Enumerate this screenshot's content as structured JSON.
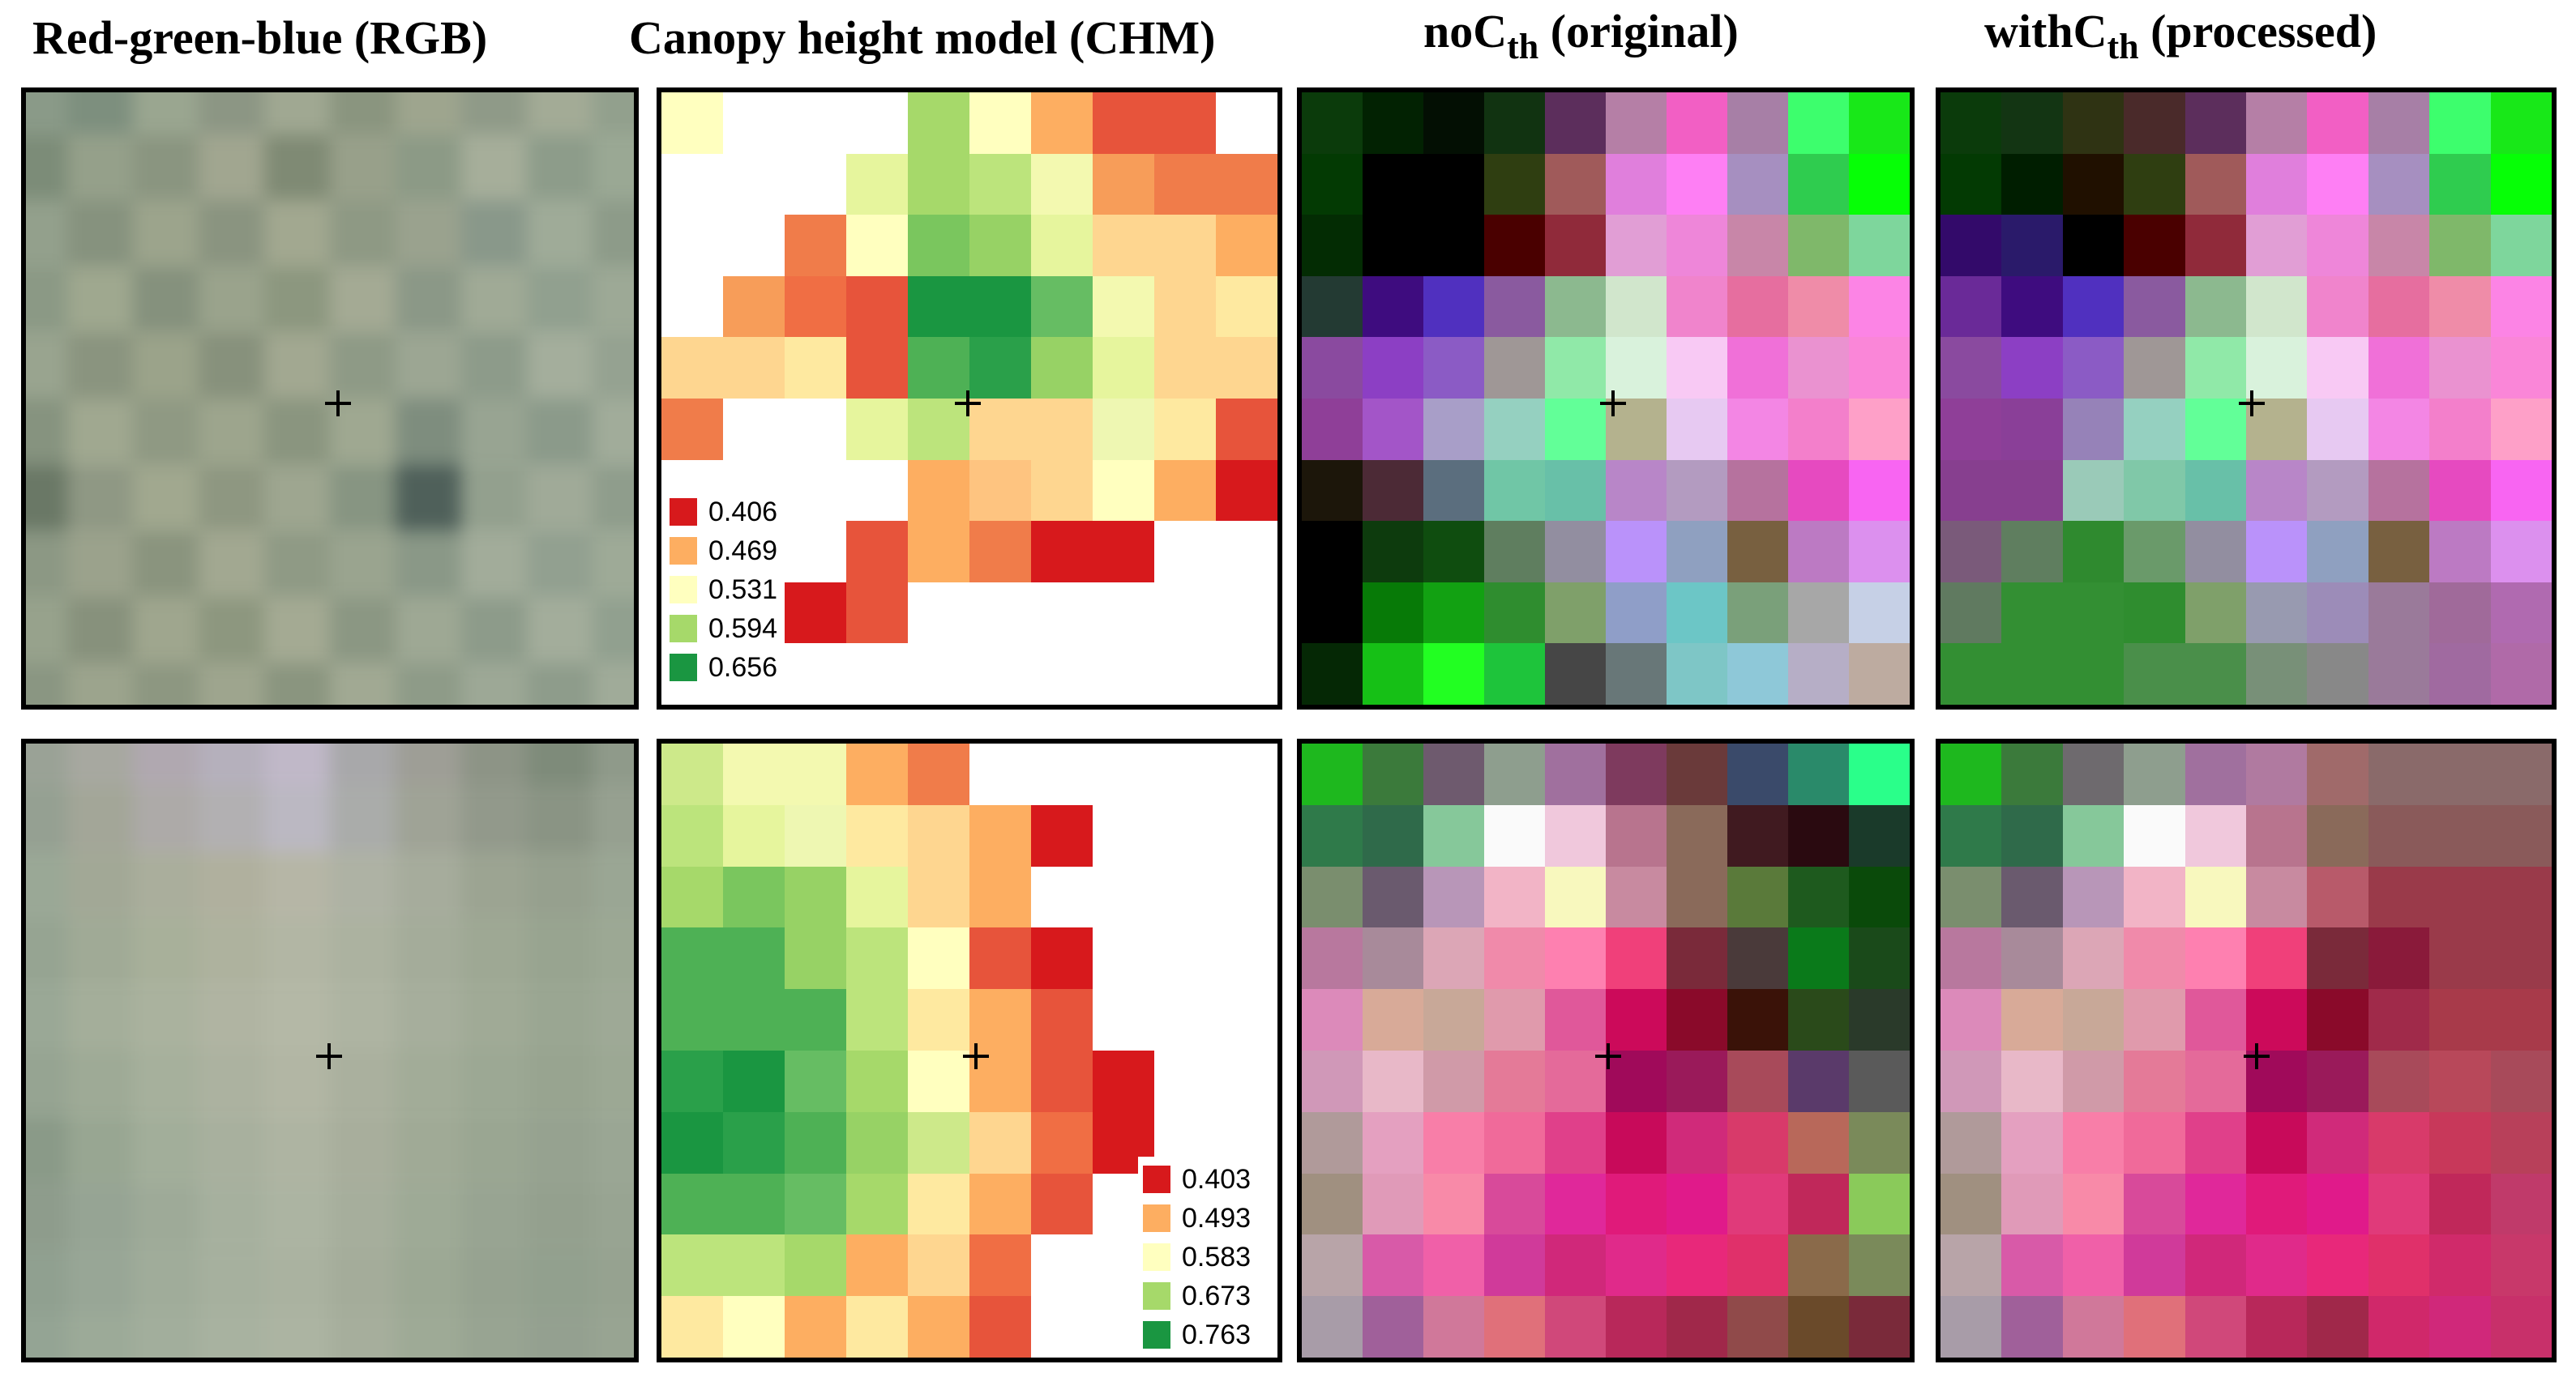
{
  "titles": {
    "rgb": "Red-green-blue (RGB)",
    "chm": "Canopy height model (CHM)",
    "nocth": {
      "main": "noC",
      "sub": "th",
      "tail": " (original)"
    },
    "withcth": {
      "main": "withC",
      "sub": "th",
      "tail": " (processed)"
    }
  },
  "legends": {
    "top": [
      {
        "value": "0.406",
        "color": "#d7191c"
      },
      {
        "value": "0.469",
        "color": "#fdae61"
      },
      {
        "value": "0.531",
        "color": "#ffffbf"
      },
      {
        "value": "0.594",
        "color": "#a6d96a"
      },
      {
        "value": "0.656",
        "color": "#1a9641"
      }
    ],
    "bottom": [
      {
        "value": "0.403",
        "color": "#d7191c"
      },
      {
        "value": "0.493",
        "color": "#fdae61"
      },
      {
        "value": "0.583",
        "color": "#ffffbf"
      },
      {
        "value": "0.673",
        "color": "#a6d96a"
      },
      {
        "value": "0.763",
        "color": "#1a9641"
      }
    ]
  },
  "grids": {
    "rgb_top": [
      [
        "#8a9a88",
        "#7d8f7e",
        "#9aa690",
        "#8c9684",
        "#a0a892",
        "#8a957f",
        "#9ea58e",
        "#8f9a88",
        "#a3ab96",
        "#92a08d"
      ],
      [
        "#7c8c78",
        "#95a08a",
        "#8a9580",
        "#a1a690",
        "#7f8a74",
        "#98a08a",
        "#8c9a86",
        "#a6ae9a",
        "#8d9c8a",
        "#9aa894"
      ],
      [
        "#93a08c",
        "#86927e",
        "#9ca48c",
        "#8a9480",
        "#a2a890",
        "#8e9984",
        "#9aa28e",
        "#89988a",
        "#9fab98",
        "#8d9b89"
      ],
      [
        "#8b9985",
        "#9fa88f",
        "#85917d",
        "#9aa38c",
        "#8c977f",
        "#a4aa94",
        "#8b9887",
        "#a0aa96",
        "#91a08f",
        "#9da996"
      ],
      [
        "#99a48f",
        "#8a947f",
        "#9ba38a",
        "#87917c",
        "#a2a891",
        "#8e9a86",
        "#9ca693",
        "#8d9b8a",
        "#a4ae9c",
        "#95a291"
      ],
      [
        "#86937f",
        "#a0a890",
        "#8f9983",
        "#9da58d",
        "#8a957f",
        "#9fa891",
        "#7e8d7e",
        "#98a492",
        "#8b9a8a",
        "#a1ac9a"
      ],
      [
        "#6a7866",
        "#8f9884",
        "#a1a88f",
        "#8e9781",
        "#9ea690",
        "#879582",
        "#4f605a",
        "#93a08e",
        "#a0aa98",
        "#8f9d8c"
      ],
      [
        "#8c9884",
        "#9ba28c",
        "#8a947e",
        "#a2a891",
        "#8f9a85",
        "#9aa48f",
        "#8a9887",
        "#a2ac9a",
        "#92a090",
        "#9eaa97"
      ],
      [
        "#97a28c",
        "#87917c",
        "#9fa68e",
        "#8d977f",
        "#a4aa93",
        "#8b9783",
        "#9ea894",
        "#8d9b8a",
        "#a3ad9b",
        "#91a08f"
      ],
      [
        "#8a9682",
        "#9ca48d",
        "#8d9781",
        "#9ea58e",
        "#8a957f",
        "#a1a993",
        "#8e9b88",
        "#9da896",
        "#8e9c8b",
        "#a0ab99"
      ]
    ],
    "chm_top": [
      [
        "#ffffbf",
        "#ffffff",
        "#ffffff",
        "#ffffff",
        "#a6d96a",
        "#ffffbf",
        "#fdae61",
        "#e7543b",
        "#e7543b",
        "#ffffff"
      ],
      [
        "#ffffff",
        "#ffffff",
        "#ffffff",
        "#e6f59d",
        "#a6d96a",
        "#bce47c",
        "#f3f9b0",
        "#f79d59",
        "#f07c4a",
        "#f07c4a"
      ],
      [
        "#ffffff",
        "#ffffff",
        "#f07c4a",
        "#ffffbf",
        "#7ac65e",
        "#97d265",
        "#e6f59d",
        "#fed690",
        "#fed690",
        "#fdae61"
      ],
      [
        "#ffffff",
        "#f79d59",
        "#f06e44",
        "#e7543b",
        "#1a9641",
        "#1a9641",
        "#66bd63",
        "#f3f9b0",
        "#fed690",
        "#fee9a0"
      ],
      [
        "#fed690",
        "#fed690",
        "#fee9a0",
        "#e7543b",
        "#4eb155",
        "#2aa04a",
        "#97d265",
        "#e6f59d",
        "#fed690",
        "#fed690"
      ],
      [
        "#f07c4a",
        "#ffffff",
        "#ffffff",
        "#e6f59d",
        "#bce47c",
        "#fed690",
        "#fed690",
        "#eef7b2",
        "#fee9a0",
        "#e7543b"
      ],
      [
        "#ffffff",
        "#ffffff",
        "#ffffff",
        "#ffffff",
        "#fdae61",
        "#fec480",
        "#fed690",
        "#ffffbf",
        "#fdae61",
        "#d7191c"
      ],
      [
        "#ffffff",
        "#ffffff",
        "#ffffff",
        "#e7543b",
        "#fdae61",
        "#f07c4a",
        "#d7191c",
        "#d7191c",
        "#ffffff",
        "#ffffff"
      ],
      [
        "#ffffff",
        "#ffffff",
        "#d7191c",
        "#e7543b",
        "#ffffff",
        "#ffffff",
        "#ffffff",
        "#ffffff",
        "#ffffff",
        "#ffffff"
      ],
      [
        "#ffffff",
        "#ffffff",
        "#ffffff",
        "#ffffff",
        "#ffffff",
        "#ffffff",
        "#ffffff",
        "#ffffff",
        "#ffffff",
        "#ffffff"
      ]
    ],
    "nocth_top": [
      [
        "#0b3b0b",
        "#022202",
        "#030f03",
        "#113311",
        "#5c2e5c",
        "#b57fa6",
        "#f25fc4",
        "#a77fa6",
        "#3dfe6d",
        "#18e818"
      ],
      [
        "#033a03",
        "#000000",
        "#000000",
        "#2f3e11",
        "#a05a5a",
        "#e07fdc",
        "#fe7ff4",
        "#a68fc0",
        "#2fcc4f",
        "#06ff06"
      ],
      [
        "#032c03",
        "#000000",
        "#000000",
        "#4a0000",
        "#902a3a",
        "#e19ed5",
        "#ee86d9",
        "#c886a8",
        "#7fb86a",
        "#7ed69c"
      ],
      [
        "#233a33",
        "#3e0c7f",
        "#5030bf",
        "#8a5a9f",
        "#8cb98f",
        "#d1e6cc",
        "#f084cc",
        "#e66e9f",
        "#ef8ca8",
        "#fc84e5"
      ],
      [
        "#8a4a9f",
        "#8c3fc4",
        "#8b5bc5",
        "#9f9796",
        "#90e9a8",
        "#d9f2dc",
        "#f8c9f4",
        "#f070d8",
        "#ea92d0",
        "#fa86d8"
      ],
      [
        "#8f3f98",
        "#a355c8",
        "#a89ec8",
        "#95d0c0",
        "#62ff98",
        "#b4b28e",
        "#e7c9f2",
        "#f386e4",
        "#f37fcb",
        "#fea0c8"
      ],
      [
        "#1c160a",
        "#4c2a36",
        "#5b6e7e",
        "#70c6a6",
        "#68c0a8",
        "#b886c8",
        "#b39bc0",
        "#b6729e",
        "#e64ac0",
        "#f865f2"
      ],
      [
        "#000000",
        "#0d3b0d",
        "#0f4d0f",
        "#5f7e5f",
        "#928ea0",
        "#ba92fa",
        "#8fa0c0",
        "#786040",
        "#bc7ac3",
        "#dc90ee"
      ],
      [
        "#000000",
        "#077a07",
        "#12a112",
        "#2f8d2f",
        "#7fa06a",
        "#8f9ec8",
        "#6cc6c6",
        "#7aa07a",
        "#a7a7a7",
        "#c6d0e6"
      ],
      [
        "#052805",
        "#16c016",
        "#22ff22",
        "#1ec43b",
        "#464646",
        "#687778",
        "#7ec6c6",
        "#8ec8d8",
        "#b6aec6",
        "#bdaba0"
      ]
    ],
    "withcth_top": [
      [
        "#0b3b0b",
        "#133513",
        "#2f3313",
        "#4a2a2a",
        "#5c2e5c",
        "#b57fa6",
        "#f25fc4",
        "#a77fa6",
        "#3dfe6d",
        "#18e818"
      ],
      [
        "#033a03",
        "#001e00",
        "#201000",
        "#2f3e11",
        "#a05a5a",
        "#e07fdc",
        "#fe7ff4",
        "#a68fc0",
        "#2fcc4f",
        "#06ff06"
      ],
      [
        "#330a6a",
        "#2a1a6a",
        "#000000",
        "#4a0000",
        "#902a3a",
        "#e19ed5",
        "#ee86d9",
        "#c886a8",
        "#7fb86a",
        "#7ed69c"
      ],
      [
        "#6a2a98",
        "#3e0c7f",
        "#5030bf",
        "#8a5a9f",
        "#8cb98f",
        "#d1e6cc",
        "#f084cc",
        "#e66e9f",
        "#ef8ca8",
        "#fc84e5"
      ],
      [
        "#8a4a9f",
        "#8c3fc4",
        "#8b5bc5",
        "#9f9796",
        "#90e9a8",
        "#d9f2dc",
        "#f8c9f4",
        "#f070d8",
        "#ea92d0",
        "#fa86d8"
      ],
      [
        "#8f3f98",
        "#8a3f98",
        "#9682b8",
        "#95d0c0",
        "#62ff98",
        "#b4b28e",
        "#e7c9f2",
        "#f386e4",
        "#f37fcb",
        "#fea0c8"
      ],
      [
        "#873f8f",
        "#873f8f",
        "#9acab8",
        "#80c8a8",
        "#68c0a8",
        "#b886c8",
        "#b39bc0",
        "#b6729e",
        "#e64ac0",
        "#f865f2"
      ],
      [
        "#7a5a7a",
        "#5f7e5f",
        "#2f8a2f",
        "#6a9a6a",
        "#928ea0",
        "#ba92fa",
        "#8fa0c0",
        "#786040",
        "#bc7ac3",
        "#dc90ee"
      ],
      [
        "#607a60",
        "#338f33",
        "#338f33",
        "#2f8d2f",
        "#7fa06a",
        "#989ab0",
        "#9c8cb8",
        "#9a7a9a",
        "#a06a9a",
        "#b06ab0"
      ],
      [
        "#338f33",
        "#338f33",
        "#338f33",
        "#4a8f4a",
        "#4a8f4a",
        "#789078",
        "#888888",
        "#9a7a9a",
        "#a06aa0",
        "#b06aa8"
      ]
    ],
    "rgb_bottom": [
      [
        "#9aa296",
        "#a7a8a0",
        "#b0a8b0",
        "#b5b0bc",
        "#c0b8c8",
        "#a8a8aa",
        "#9e9e96",
        "#8d9486",
        "#7e8b7a",
        "#8f9a8a"
      ],
      [
        "#95a092",
        "#a3a698",
        "#adaaa8",
        "#b2b0b2",
        "#bbb8c2",
        "#aaacaa",
        "#9fa396",
        "#92998b",
        "#8a9484",
        "#96a090"
      ],
      [
        "#9aa896",
        "#a2a896",
        "#aaae9c",
        "#b0b09e",
        "#b6b6a6",
        "#aeb2a4",
        "#a6ac9c",
        "#9ca492",
        "#96a08e",
        "#9aa694"
      ],
      [
        "#96a492",
        "#a0aa96",
        "#a8b09a",
        "#aeb29e",
        "#b2b6a4",
        "#acb2a0",
        "#a4ac9a",
        "#9ea894",
        "#98a490",
        "#9ca894"
      ],
      [
        "#9aa896",
        "#a4ae9a",
        "#aab29e",
        "#b0b4a2",
        "#b4b8a6",
        "#aeb4a2",
        "#a6ae9c",
        "#a0aa96",
        "#9aa692",
        "#9ea996"
      ],
      [
        "#96a492",
        "#9eaa96",
        "#a6b09c",
        "#acb2a0",
        "#b2b6a4",
        "#aab09e",
        "#a2ac98",
        "#9ca894",
        "#98a490",
        "#9ca894"
      ],
      [
        "#8a9a88",
        "#98a692",
        "#a2ae9a",
        "#a8b09e",
        "#aeb4a2",
        "#a8ae9c",
        "#a0aa96",
        "#9aa692",
        "#96a290",
        "#9aa694"
      ],
      [
        "#8e9c8c",
        "#96a494",
        "#9eaa98",
        "#a6b09e",
        "#acb4a2",
        "#a6ae9c",
        "#9eaa96",
        "#98a492",
        "#94a08e",
        "#98a492"
      ],
      [
        "#90a090",
        "#98a696",
        "#a0ac9a",
        "#a6b09e",
        "#aab2a0",
        "#a4ac9a",
        "#9ca894",
        "#96a290",
        "#92a08e",
        "#96a290"
      ],
      [
        "#94a494",
        "#9caa98",
        "#a2ae9c",
        "#a8b2a0",
        "#acb4a2",
        "#a6ae9c",
        "#9eaa96",
        "#98a492",
        "#94a090",
        "#98a492"
      ]
    ],
    "chm_bottom": [
      [
        "#cde98a",
        "#f3f9b0",
        "#f3f9b0",
        "#fdae61",
        "#f07c4a",
        "#ffffff",
        "#ffffff",
        "#ffffff",
        "#ffffff",
        "#ffffff"
      ],
      [
        "#bce47c",
        "#e6f59d",
        "#eef7b2",
        "#fee9a0",
        "#fed690",
        "#fdae61",
        "#d7191c",
        "#ffffff",
        "#ffffff",
        "#ffffff"
      ],
      [
        "#a6d96a",
        "#7ac65e",
        "#97d265",
        "#e6f59d",
        "#fed690",
        "#fdae61",
        "#ffffff",
        "#ffffff",
        "#ffffff",
        "#ffffff"
      ],
      [
        "#4eb155",
        "#4eb155",
        "#97d265",
        "#bce47c",
        "#ffffbf",
        "#e7543b",
        "#d7191c",
        "#ffffff",
        "#ffffff",
        "#ffffff"
      ],
      [
        "#4eb155",
        "#4eb155",
        "#4eb155",
        "#bce47c",
        "#fee9a0",
        "#fdae61",
        "#e7543b",
        "#ffffff",
        "#ffffff",
        "#ffffff"
      ],
      [
        "#2aa04a",
        "#1a9641",
        "#66bd63",
        "#a6d96a",
        "#ffffbf",
        "#fdae61",
        "#e7543b",
        "#d7191c",
        "#ffffff",
        "#ffffff"
      ],
      [
        "#1a9641",
        "#2aa04a",
        "#4eb155",
        "#97d265",
        "#cde98a",
        "#fed690",
        "#f06e44",
        "#d7191c",
        "#ffffff",
        "#ffffff"
      ],
      [
        "#4eb155",
        "#4eb155",
        "#66bd63",
        "#a6d96a",
        "#fee9a0",
        "#fdae61",
        "#e7543b",
        "#ffffff",
        "#ffffff",
        "#ffffff"
      ],
      [
        "#bce47c",
        "#bce47c",
        "#a6d96a",
        "#fdae61",
        "#fed690",
        "#f06e44",
        "#ffffff",
        "#ffffff",
        "#ffffff",
        "#ffffff"
      ],
      [
        "#fee9a0",
        "#ffffbf",
        "#fdae61",
        "#fee9a0",
        "#fdae61",
        "#e7543b",
        "#ffffff",
        "#ffffff",
        "#ffffff",
        "#ffffff"
      ]
    ],
    "nocth_bottom": [
      [
        "#1eb81e",
        "#3b7a3b",
        "#6e5a6e",
        "#8e9e8e",
        "#a0709e",
        "#7e3a5e",
        "#6a3a3a",
        "#3a4a6a",
        "#2a8a6a",
        "#2aff8a"
      ],
      [
        "#2f7a4a",
        "#2f6a4a",
        "#86c89a",
        "#fafafa",
        "#f0c8dc",
        "#b8748e",
        "#8a6a5a",
        "#401a20",
        "#2a0a10",
        "#1a3a2a"
      ],
      [
        "#7a8e6e",
        "#6a5a6e",
        "#b896b8",
        "#f2b4c6",
        "#f8f8be",
        "#c88aa0",
        "#8a6a5a",
        "#5a7a3a",
        "#1e5a1e",
        "#0a4a0a"
      ],
      [
        "#b8789e",
        "#a88a9a",
        "#dca6b6",
        "#f08aaa",
        "#fe80b0",
        "#f0407a",
        "#7a2a3a",
        "#4a3a3a",
        "#0a7a1a",
        "#1a4a1a"
      ],
      [
        "#dc8aba",
        "#d8aa98",
        "#c8a898",
        "#e09aac",
        "#e0589a",
        "#cc0a5a",
        "#8a0a2a",
        "#3a1208",
        "#2a4a1a",
        "#2a3a2a"
      ],
      [
        "#d098b8",
        "#e8b8c8",
        "#d09aa8",
        "#e47a98",
        "#e46a9a",
        "#a00a5a",
        "#9a1a5a",
        "#a84a5a",
        "#5a3a6a",
        "#5a5a5a"
      ],
      [
        "#b09a9a",
        "#e4a0c0",
        "#f87ea8",
        "#f06a9a",
        "#e0408a",
        "#c80a5a",
        "#d02a7a",
        "#d83a6a",
        "#b8685a",
        "#7a8a5a"
      ],
      [
        "#a09080",
        "#e09ab8",
        "#f88aa8",
        "#d84a9a",
        "#e0289a",
        "#e01a7a",
        "#e01a8a",
        "#e03a7a",
        "#c0285a",
        "#8aca5a"
      ],
      [
        "#b8a4a8",
        "#d85aa8",
        "#f060a8",
        "#d03a9a",
        "#d0287a",
        "#e02a8a",
        "#e8287a",
        "#e0306a",
        "#8a6a4a",
        "#7a8a5a"
      ],
      [
        "#a89ca8",
        "#a0609a",
        "#d0789a",
        "#e0707a",
        "#d0487a",
        "#b8285a",
        "#a0284a",
        "#904a4a",
        "#6a4a2a",
        "#7a2a3a"
      ]
    ],
    "withcth_bottom": [
      [
        "#1eb81e",
        "#3b7a3b",
        "#6e6a6e",
        "#8e9e8e",
        "#a0709e",
        "#b07aa0",
        "#a06a6a",
        "#8a6a6a",
        "#8a6a6a",
        "#8a6a6a"
      ],
      [
        "#2f7a4a",
        "#2f6a4a",
        "#86c89a",
        "#fafafa",
        "#f0c8dc",
        "#b8748e",
        "#8a6a5a",
        "#8a5a5a",
        "#8a5a5a",
        "#8a5a5a"
      ],
      [
        "#7a8e6e",
        "#6a5a6e",
        "#b896b8",
        "#f2b4c6",
        "#f8f8be",
        "#c88aa0",
        "#b85a6a",
        "#9a3a4a",
        "#9a3a4a",
        "#9a3a4a"
      ],
      [
        "#b8789e",
        "#a88a9a",
        "#dca6b6",
        "#f08aaa",
        "#fe80b0",
        "#f0407a",
        "#7a2a3a",
        "#8a1a3a",
        "#9a3a4a",
        "#9a3a4a"
      ],
      [
        "#dc8aba",
        "#d8aa98",
        "#c8a898",
        "#e09aac",
        "#e0589a",
        "#cc0a5a",
        "#8a0a2a",
        "#a02a4a",
        "#a83a4a",
        "#a83a4a"
      ],
      [
        "#d098b8",
        "#e8b8c8",
        "#d09aa8",
        "#e47a98",
        "#e46a9a",
        "#a00a5a",
        "#9a1a5a",
        "#a84a5a",
        "#b8485a",
        "#a84a5a"
      ],
      [
        "#b09a9a",
        "#e4a0c0",
        "#f87ea8",
        "#f06a9a",
        "#e0408a",
        "#c80a5a",
        "#d02a7a",
        "#d83a6a",
        "#c8385a",
        "#b8405a"
      ],
      [
        "#a09080",
        "#e09ab8",
        "#f88aa8",
        "#d84a9a",
        "#e0289a",
        "#e01a7a",
        "#e01a8a",
        "#e03a7a",
        "#c0285a",
        "#c03a6a"
      ],
      [
        "#b8a4a8",
        "#d85aa8",
        "#f060a8",
        "#d03a9a",
        "#d0287a",
        "#e02a8a",
        "#e8287a",
        "#e0306a",
        "#d02a6a",
        "#c8386a"
      ],
      [
        "#a89ca8",
        "#a0609a",
        "#d0789a",
        "#e0707a",
        "#d0487a",
        "#b8285a",
        "#a0284a",
        "#d0286a",
        "#d0287a",
        "#c8306a"
      ]
    ]
  }
}
